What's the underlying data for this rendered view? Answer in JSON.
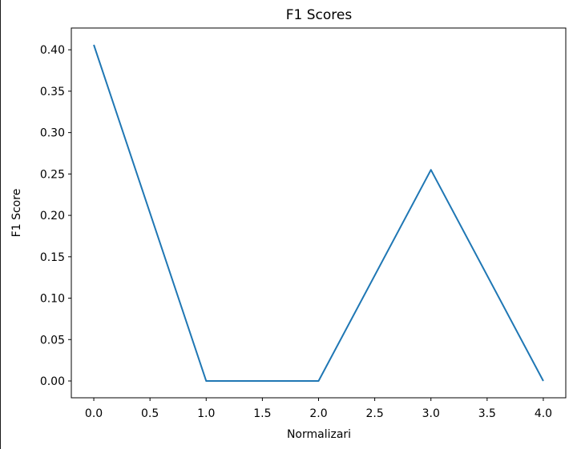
{
  "chart_data": {
    "type": "line",
    "title": "F1 Scores",
    "xlabel": "Normalizari",
    "ylabel": "F1 Score",
    "series": [
      {
        "x": [
          0,
          1,
          2,
          3,
          4
        ],
        "values": [
          0.406,
          0.0,
          0.0,
          0.255,
          0.0
        ],
        "color": "#1f77b4"
      }
    ],
    "xlim": [
      -0.2,
      4.2
    ],
    "ylim": [
      -0.0203,
      0.4263
    ],
    "xticks": [
      "0.0",
      "0.5",
      "1.0",
      "1.5",
      "2.0",
      "2.5",
      "3.0",
      "3.5",
      "4.0"
    ],
    "yticks": [
      "0.00",
      "0.05",
      "0.10",
      "0.15",
      "0.20",
      "0.25",
      "0.30",
      "0.35",
      "0.40"
    ],
    "grid": false,
    "legend": "none"
  }
}
